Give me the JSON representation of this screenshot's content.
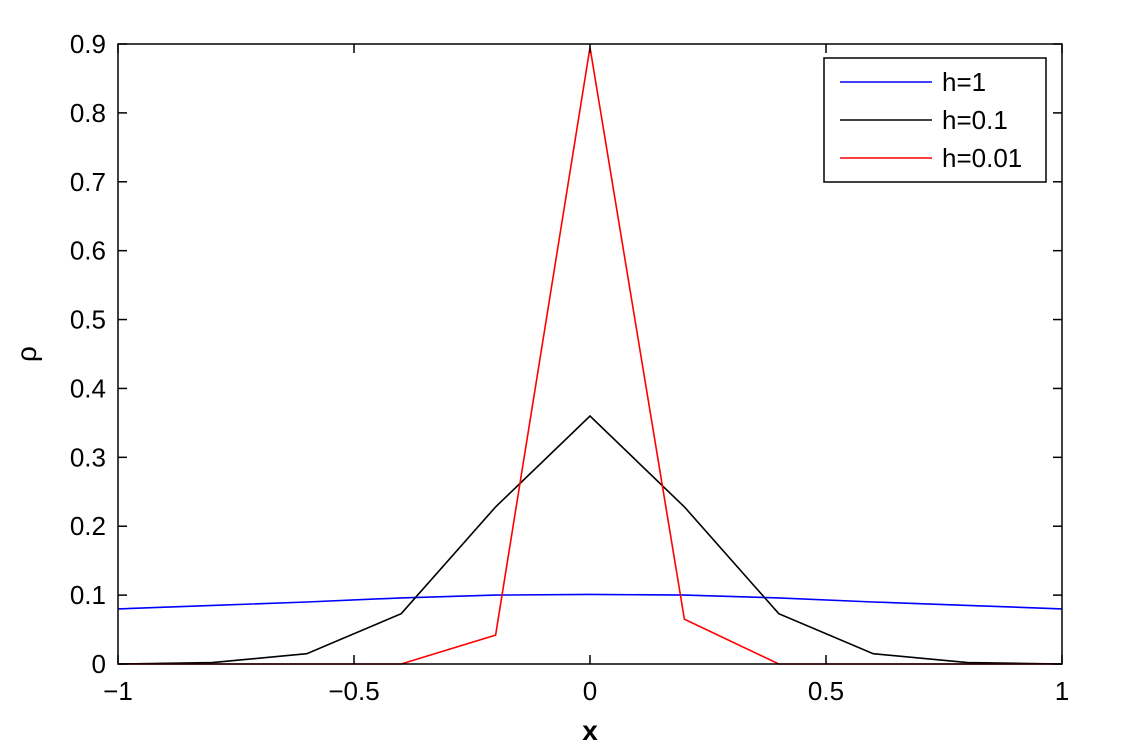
{
  "chart_data": {
    "type": "line",
    "xlabel": "x",
    "ylabel": "ρ",
    "xlim": [
      -1,
      1
    ],
    "ylim": [
      0,
      0.9
    ],
    "xticks": [
      -1,
      -0.5,
      0,
      0.5,
      1
    ],
    "xtick_labels": [
      "−1",
      "−0.5",
      "0",
      "0.5",
      "1"
    ],
    "yticks": [
      0,
      0.1,
      0.2,
      0.3,
      0.4,
      0.5,
      0.6,
      0.7,
      0.8,
      0.9
    ],
    "ytick_labels": [
      "0",
      "0.1",
      "0.2",
      "0.3",
      "0.4",
      "0.5",
      "0.6",
      "0.7",
      "0.8",
      "0.9"
    ],
    "grid": false,
    "legend_position": "top-right",
    "series": [
      {
        "name": "h=1",
        "color": "#0000ff",
        "x": [
          -1,
          -0.8,
          -0.6,
          -0.4,
          -0.2,
          0,
          0.2,
          0.4,
          0.6,
          0.8,
          1
        ],
        "y": [
          0.08,
          0.085,
          0.09,
          0.096,
          0.1,
          0.101,
          0.1,
          0.096,
          0.09,
          0.085,
          0.08
        ]
      },
      {
        "name": "h=0.1",
        "color": "#000000",
        "x": [
          -1,
          -0.8,
          -0.6,
          -0.4,
          -0.2,
          0,
          0.2,
          0.4,
          0.6,
          0.8,
          1
        ],
        "y": [
          0.0,
          0.002,
          0.015,
          0.073,
          0.228,
          0.36,
          0.228,
          0.073,
          0.015,
          0.002,
          0.0
        ]
      },
      {
        "name": "h=0.01",
        "color": "#ff0000",
        "x": [
          -1,
          -0.8,
          -0.6,
          -0.4,
          -0.2,
          0,
          0.2,
          0.4,
          0.6,
          0.8,
          1
        ],
        "y": [
          0.0,
          0.0,
          0.0,
          0.0,
          0.042,
          0.895,
          0.065,
          0.0,
          0.0,
          0.0,
          0.0
        ]
      }
    ]
  }
}
